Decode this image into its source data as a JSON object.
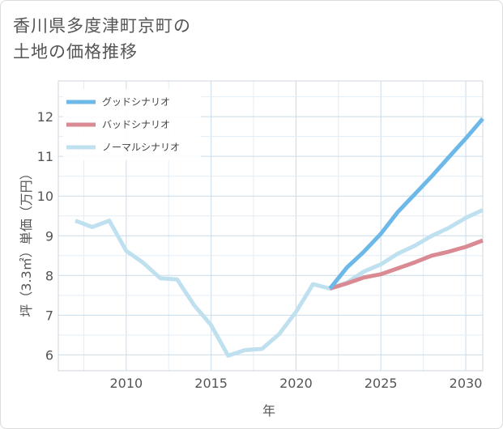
{
  "title_line1": "香川県多度津町京町の",
  "title_line2": "土地の価格推移",
  "chart_data": {
    "type": "line",
    "xlabel": "年",
    "ylabel": "坪（3.3㎡）単価（万円）",
    "xlim": [
      2006,
      2031
    ],
    "ylim": [
      5.6,
      12.9
    ],
    "x_ticks": [
      2010,
      2015,
      2020,
      2025,
      2030
    ],
    "y_ticks": [
      6,
      7,
      8,
      9,
      10,
      11,
      12
    ],
    "grid": true,
    "legend_position": "top-left",
    "series": [
      {
        "name": "グッドシナリオ",
        "color": "#6cb8e8",
        "x": [
          2022,
          2023,
          2024,
          2025,
          2026,
          2027,
          2028,
          2029,
          2030,
          2031
        ],
        "values": [
          7.67,
          8.2,
          8.6,
          9.05,
          9.6,
          10.05,
          10.5,
          10.98,
          11.45,
          11.95
        ]
      },
      {
        "name": "バッドシナリオ",
        "color": "#d98a92",
        "x": [
          2022,
          2023,
          2024,
          2025,
          2026,
          2027,
          2028,
          2029,
          2030,
          2031
        ],
        "values": [
          7.67,
          7.8,
          7.95,
          8.03,
          8.18,
          8.33,
          8.5,
          8.6,
          8.72,
          8.88
        ]
      },
      {
        "name": "ノーマルシナリオ",
        "color": "#bfe0ef",
        "x": [
          2007,
          2008,
          2009,
          2010,
          2011,
          2012,
          2013,
          2014,
          2015,
          2016,
          2017,
          2018,
          2019,
          2020,
          2021,
          2022,
          2023,
          2024,
          2025,
          2026,
          2027,
          2028,
          2029,
          2030,
          2031
        ],
        "values": [
          9.38,
          9.22,
          9.38,
          8.62,
          8.32,
          7.93,
          7.9,
          7.25,
          6.75,
          5.98,
          6.12,
          6.15,
          6.52,
          7.08,
          7.78,
          7.67,
          7.82,
          8.1,
          8.28,
          8.55,
          8.75,
          9.0,
          9.2,
          9.45,
          9.65
        ]
      }
    ]
  }
}
